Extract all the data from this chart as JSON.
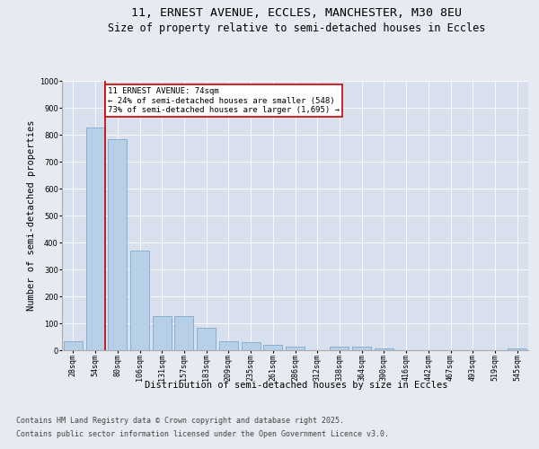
{
  "title_line1": "11, ERNEST AVENUE, ECCLES, MANCHESTER, M30 8EU",
  "title_line2": "Size of property relative to semi-detached houses in Eccles",
  "xlabel": "Distribution of semi-detached houses by size in Eccles",
  "ylabel": "Number of semi-detached properties",
  "categories": [
    "28sqm",
    "54sqm",
    "80sqm",
    "106sqm",
    "131sqm",
    "157sqm",
    "183sqm",
    "209sqm",
    "235sqm",
    "261sqm",
    "286sqm",
    "312sqm",
    "338sqm",
    "364sqm",
    "390sqm",
    "416sqm",
    "442sqm",
    "467sqm",
    "493sqm",
    "519sqm",
    "545sqm"
  ],
  "values": [
    35,
    828,
    783,
    370,
    128,
    128,
    83,
    35,
    30,
    20,
    12,
    0,
    13,
    13,
    8,
    0,
    0,
    0,
    0,
    0,
    7
  ],
  "bar_color": "#b8cfe8",
  "bar_edge_color": "#6e9fc5",
  "property_line_bar_index": 1,
  "property_label": "11 ERNEST AVENUE: 74sqm",
  "annotation_line1": "← 24% of semi-detached houses are smaller (548)",
  "annotation_line2": "73% of semi-detached houses are larger (1,695) →",
  "annotation_box_color": "#ffffff",
  "annotation_box_edge": "#cc0000",
  "line_color": "#cc0000",
  "ylim": [
    0,
    1000
  ],
  "yticks": [
    0,
    100,
    200,
    300,
    400,
    500,
    600,
    700,
    800,
    900,
    1000
  ],
  "bg_color": "#e8eaf2",
  "plot_bg_color": "#d8e0ee",
  "footer_line1": "Contains HM Land Registry data © Crown copyright and database right 2025.",
  "footer_line2": "Contains public sector information licensed under the Open Government Licence v3.0.",
  "title_fontsize": 9.5,
  "subtitle_fontsize": 8.5,
  "axis_label_fontsize": 7.5,
  "tick_fontsize": 6,
  "annotation_fontsize": 6.5,
  "footer_fontsize": 6
}
